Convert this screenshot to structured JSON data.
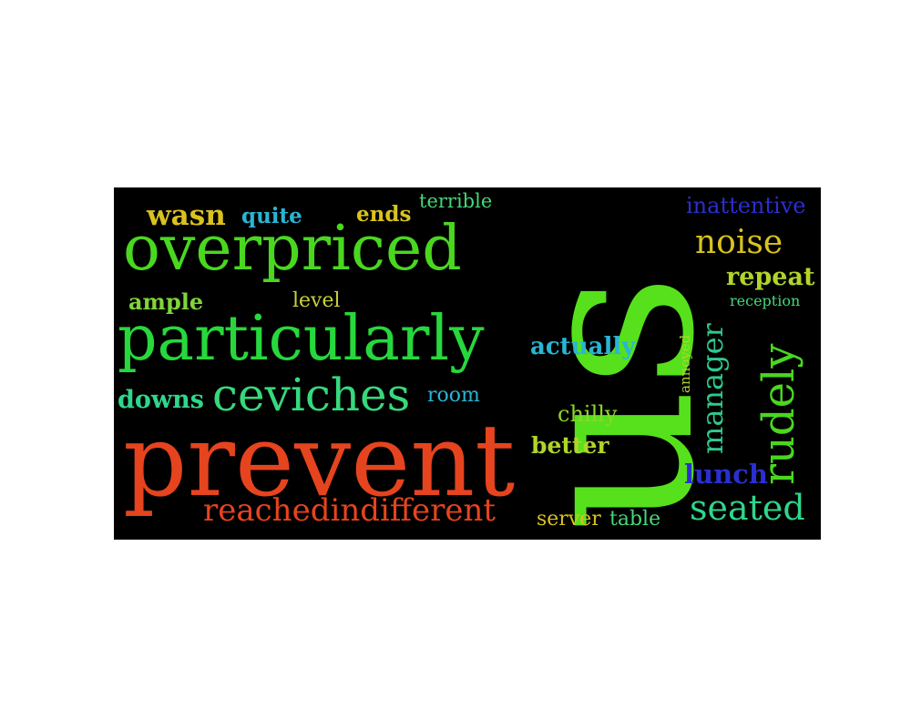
{
  "words": [
    {
      "text": "wasn",
      "color": "#d9c21e",
      "bold": true
    },
    {
      "text": "quite",
      "color": "#29b5d4",
      "bold": true
    },
    {
      "text": "ends",
      "color": "#d9c21e",
      "bold": true
    },
    {
      "text": "terrible",
      "color": "#45d878",
      "bold": false
    },
    {
      "text": "overpriced",
      "color": "#4ad71f",
      "bold": false
    },
    {
      "text": "ample",
      "color": "#7fd53a",
      "bold": true
    },
    {
      "text": "level",
      "color": "#c9d23a",
      "bold": false
    },
    {
      "text": "particularly",
      "color": "#27d83c",
      "bold": false
    },
    {
      "text": "downs",
      "color": "#2fd68c",
      "bold": true
    },
    {
      "text": "ceviches",
      "color": "#37d87d",
      "bold": false
    },
    {
      "text": "room",
      "color": "#29b5d4",
      "bold": false
    },
    {
      "text": "prevent",
      "color": "#e6441e",
      "bold": false
    },
    {
      "text": "reachedindifferent",
      "color": "#e6441e",
      "bold": false
    },
    {
      "text": "us",
      "color": "#56e11c",
      "bold": false
    },
    {
      "text": "inattentive",
      "color": "#2a2fd0",
      "bold": false
    },
    {
      "text": "noise",
      "color": "#d9c21e",
      "bold": false
    },
    {
      "text": "repeat",
      "color": "#b2d42a",
      "bold": true
    },
    {
      "text": "reception",
      "color": "#45d878",
      "bold": false
    },
    {
      "text": "actually",
      "color": "#29b5d4",
      "bold": true
    },
    {
      "text": "manager",
      "color": "#2fc98c",
      "bold": false
    },
    {
      "text": "annoyed",
      "color": "#b2d42a",
      "bold": false
    },
    {
      "text": "rudely",
      "color": "#4ad71f",
      "bold": false
    },
    {
      "text": "chilly",
      "color": "#8ad62a",
      "bold": false
    },
    {
      "text": "better",
      "color": "#b2d42a",
      "bold": true
    },
    {
      "text": "lunch",
      "color": "#2a2fd0",
      "bold": true
    },
    {
      "text": "seated",
      "color": "#2fd68c",
      "bold": false
    },
    {
      "text": "server",
      "color": "#d9c21e",
      "bold": false
    },
    {
      "text": "table",
      "color": "#45d878",
      "bold": false
    }
  ]
}
